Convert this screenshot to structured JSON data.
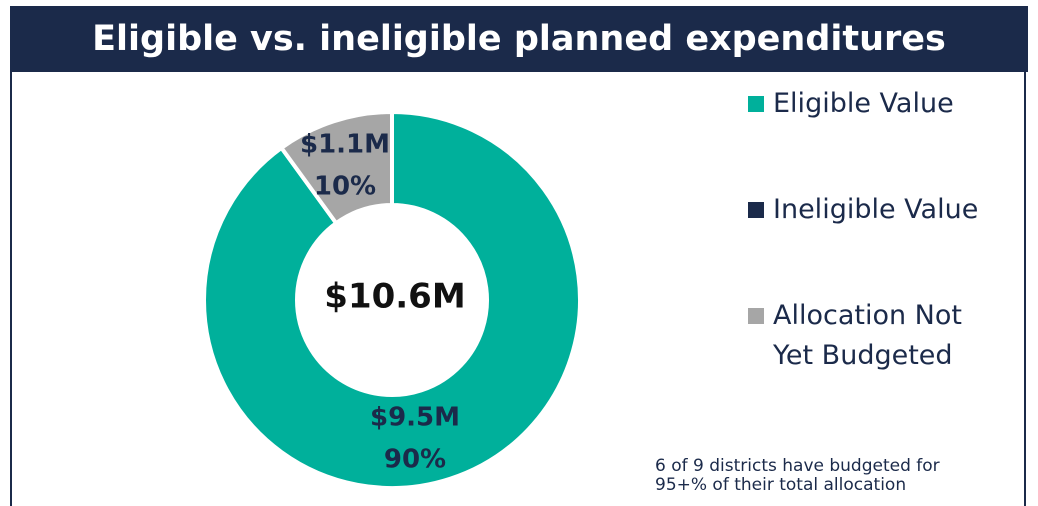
{
  "chart_data": {
    "type": "pie",
    "donut": true,
    "title": "Eligible vs. ineligible planned expenditures",
    "center_label": "$10.6M",
    "series": [
      {
        "name": "Eligible Value",
        "color": "#00b09b",
        "values": [
          90
        ],
        "value_labels": [
          "90%"
        ],
        "amount_labels": [
          "$9.5M"
        ]
      },
      {
        "name": "Ineligible Value",
        "color": "#1b2a4a",
        "values": [
          0
        ],
        "value_labels": [
          null
        ],
        "amount_labels": [
          null
        ]
      },
      {
        "name": "Allocation Not Yet Budgeted",
        "color": "#a6a6a6",
        "values": [
          10
        ],
        "value_labels": [
          "10%"
        ],
        "amount_labels": [
          "$1.1M"
        ]
      }
    ],
    "legend": "right",
    "annotation": "6 of 9 districts have budgeted for 95+% of their total allocation"
  }
}
